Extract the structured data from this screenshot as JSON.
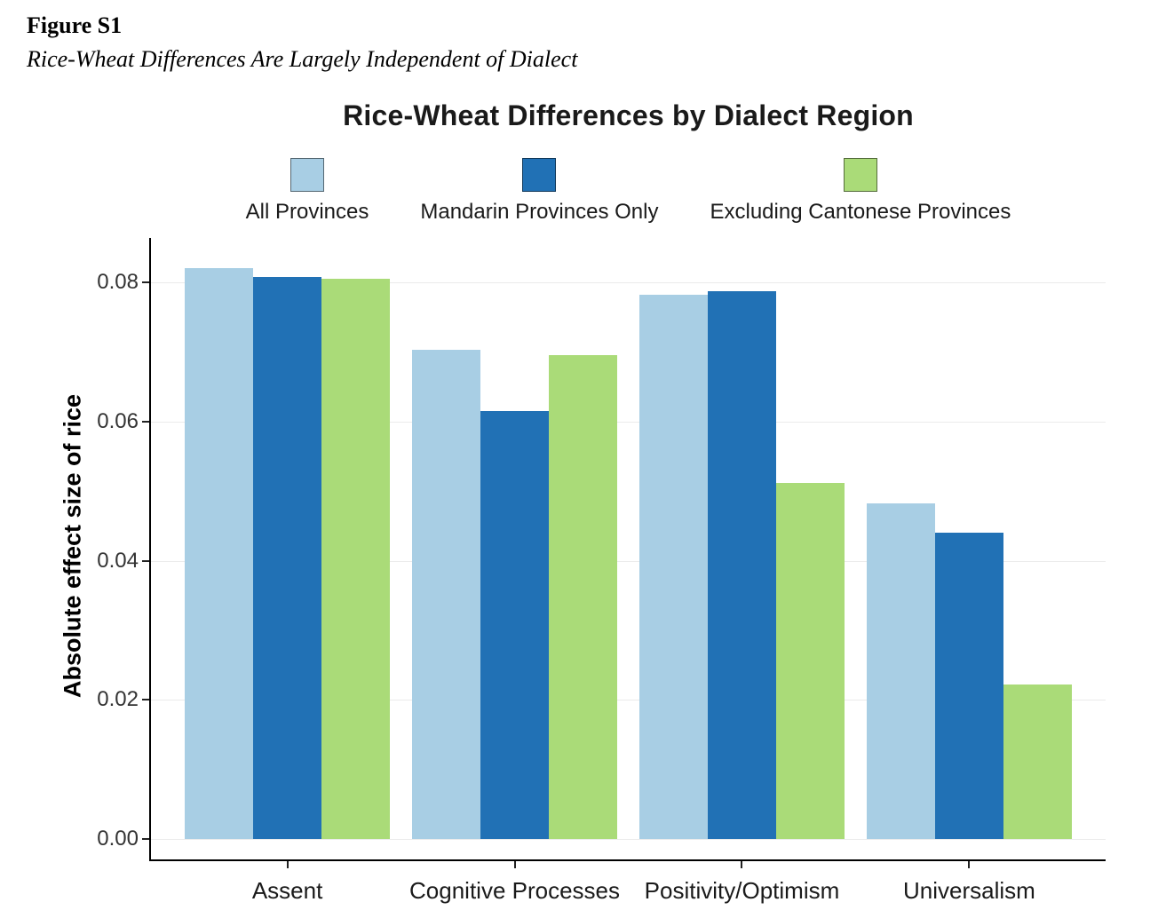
{
  "figure": {
    "label": "Figure S1",
    "caption": "Rice-Wheat Differences Are Largely Independent of Dialect"
  },
  "chart_data": {
    "type": "bar",
    "title": "Rice-Wheat Differences by Dialect Region",
    "xlabel": "",
    "ylabel": "Absolute effect size of rice",
    "categories": [
      "Assent",
      "Cognitive Processes",
      "Positivity/Optimism",
      "Universalism"
    ],
    "series": [
      {
        "name": "All Provinces",
        "color": "#A8CEE4",
        "values": [
          0.082,
          0.0703,
          0.0782,
          0.0482
        ]
      },
      {
        "name": "Mandarin Provinces Only",
        "color": "#2171B5",
        "values": [
          0.0808,
          0.0615,
          0.0787,
          0.044
        ]
      },
      {
        "name": "Excluding Cantonese Provinces",
        "color": "#AADB78",
        "values": [
          0.0805,
          0.0695,
          0.0512,
          0.0222
        ]
      }
    ],
    "yticks": [
      0,
      0.02,
      0.04,
      0.06,
      0.08
    ],
    "ytick_labels": [
      "0.00",
      "0.02",
      "0.04",
      "0.06",
      "0.08"
    ],
    "ylim": [
      0,
      0.0855
    ],
    "grid": true,
    "legend_position": "top"
  }
}
